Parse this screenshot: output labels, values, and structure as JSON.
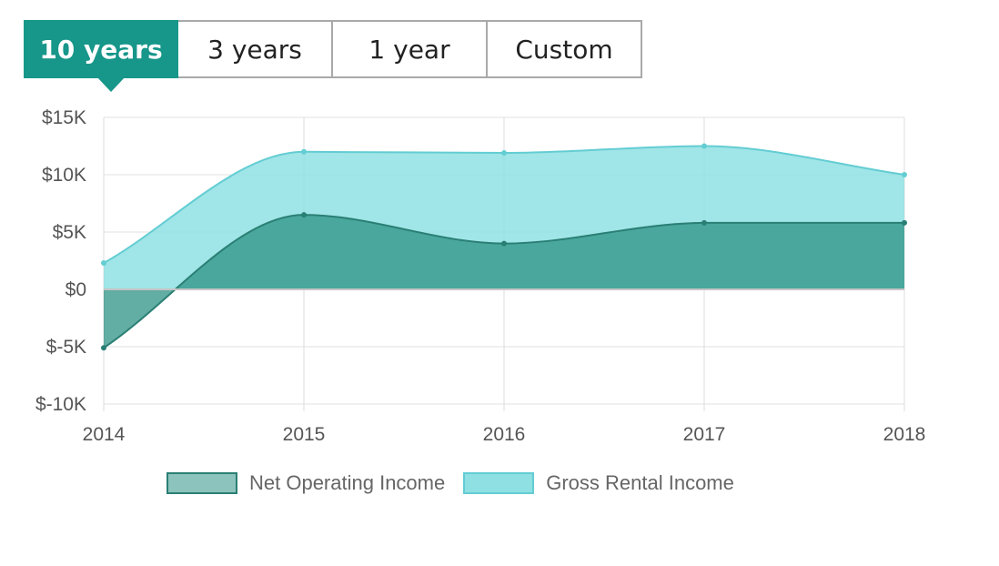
{
  "tabs": [
    {
      "label": "10 years",
      "active": true
    },
    {
      "label": "3 years",
      "active": false
    },
    {
      "label": "1 year",
      "active": false
    },
    {
      "label": "Custom",
      "active": false
    }
  ],
  "colors": {
    "accent": "#17968a",
    "net_fill": "#2e9285",
    "net_line": "#2a7f74",
    "gross_fill": "#8fe0e3",
    "gross_line": "#63cdd3",
    "grid": "#e2e2e2",
    "zero_line": "#c4c4c4"
  },
  "chart_data": {
    "type": "area",
    "x": [
      "2014",
      "2015",
      "2016",
      "2017",
      "2018"
    ],
    "series": [
      {
        "name": "Gross Rental Income",
        "values": [
          2300,
          12000,
          11900,
          12500,
          10000
        ]
      },
      {
        "name": "Net Operating Income",
        "values": [
          -5100,
          6500,
          4000,
          5800,
          5800
        ]
      }
    ],
    "ylim": [
      -10000,
      15000
    ],
    "y_ticks": [
      15000,
      10000,
      5000,
      0,
      -5000,
      -10000
    ],
    "y_tick_labels": [
      "$15K",
      "$10K",
      "$5K",
      "$0",
      "$-5K",
      "$-10K"
    ],
    "title": "",
    "xlabel": "",
    "ylabel": "",
    "grid": true,
    "legend_position": "bottom"
  },
  "legend": [
    {
      "label": "Net Operating Income"
    },
    {
      "label": "Gross Rental Income"
    }
  ]
}
